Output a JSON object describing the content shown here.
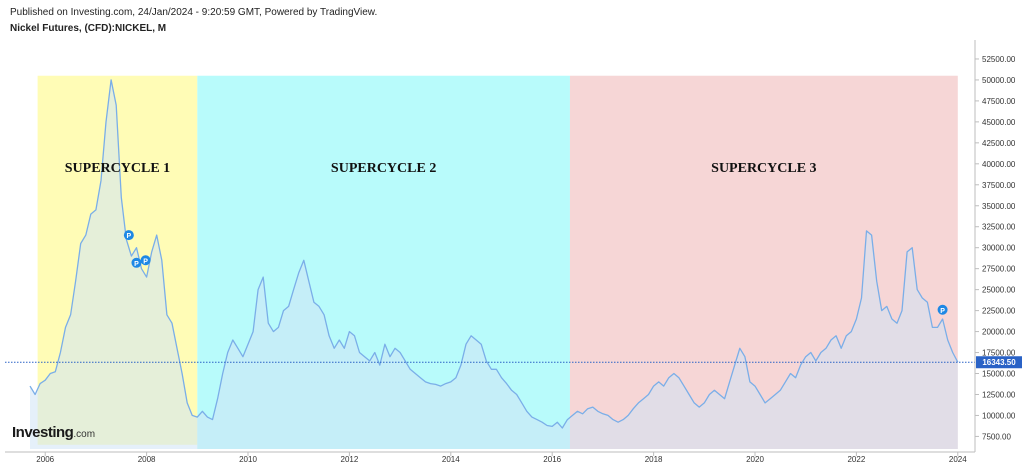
{
  "header": {
    "published": "Published on Investing.com, 24/Jan/2024 - 9:20:59 GMT, Powered by TradingView.",
    "symbol": "Nickel Futures, (CFD):NICKEL, M"
  },
  "logo": {
    "name": "Investing",
    "domain": ".com"
  },
  "colors": {
    "line": "#7aaee8",
    "last_price": "#2a62c6",
    "marker": "#1e88e5",
    "zone1": "#fffcb6",
    "zone2": "#b8fbfb",
    "zone3": "#f6d6d6",
    "fill": "#cfe3f6"
  },
  "chart_data": {
    "type": "area",
    "title": "Nickel Futures, (CFD):NICKEL, M",
    "xlim": [
      2005.7,
      2024.3
    ],
    "ylim": [
      6000,
      55000
    ],
    "x_ticks": [
      "2006",
      "2008",
      "2010",
      "2012",
      "2014",
      "2016",
      "2018",
      "2020",
      "2022",
      "2024"
    ],
    "y_ticks": [
      "7500.00",
      "10000.00",
      "12500.00",
      "15000.00",
      "17500.00",
      "20000.00",
      "22500.00",
      "25000.00",
      "27500.00",
      "30000.00",
      "32500.00",
      "35000.00",
      "37500.00",
      "40000.00",
      "42500.00",
      "45000.00",
      "47500.00",
      "50000.00",
      "52500.00"
    ],
    "last_price": {
      "value": 16343.5,
      "label": "16343.50"
    },
    "zones": [
      {
        "label": "SUPERCYCLE 1",
        "x_start": 2005.85,
        "x_end": 2009.0
      },
      {
        "label": "SUPERCYCLE 2",
        "x_start": 2009.0,
        "x_end": 2016.35
      },
      {
        "label": "SUPERCYCLE 3",
        "x_start": 2016.35,
        "x_end": 2024.0
      }
    ],
    "markers": [
      {
        "x": 2007.65,
        "y": 31500,
        "label": "P"
      },
      {
        "x": 2007.8,
        "y": 28200,
        "label": "P"
      },
      {
        "x": 2007.98,
        "y": 28500,
        "label": "P"
      },
      {
        "x": 2023.7,
        "y": 22600,
        "label": "P"
      }
    ],
    "series": [
      {
        "values": [
          [
            2005.7,
            13500
          ],
          [
            2005.8,
            12500
          ],
          [
            2005.9,
            13800
          ],
          [
            2006.0,
            14200
          ],
          [
            2006.1,
            15000
          ],
          [
            2006.2,
            15200
          ],
          [
            2006.3,
            17500
          ],
          [
            2006.4,
            20500
          ],
          [
            2006.5,
            22000
          ],
          [
            2006.6,
            26000
          ],
          [
            2006.7,
            30500
          ],
          [
            2006.8,
            31500
          ],
          [
            2006.9,
            34000
          ],
          [
            2007.0,
            34500
          ],
          [
            2007.1,
            38000
          ],
          [
            2007.2,
            45000
          ],
          [
            2007.3,
            50000
          ],
          [
            2007.4,
            47000
          ],
          [
            2007.5,
            36000
          ],
          [
            2007.6,
            31000
          ],
          [
            2007.7,
            29000
          ],
          [
            2007.8,
            30000
          ],
          [
            2007.9,
            27500
          ],
          [
            2008.0,
            26500
          ],
          [
            2008.1,
            29500
          ],
          [
            2008.2,
            31500
          ],
          [
            2008.3,
            28500
          ],
          [
            2008.4,
            22000
          ],
          [
            2008.5,
            21000
          ],
          [
            2008.6,
            18000
          ],
          [
            2008.7,
            15000
          ],
          [
            2008.8,
            11500
          ],
          [
            2008.9,
            10000
          ],
          [
            2009.0,
            9800
          ],
          [
            2009.1,
            10500
          ],
          [
            2009.2,
            9800
          ],
          [
            2009.3,
            9500
          ],
          [
            2009.4,
            12000
          ],
          [
            2009.5,
            15000
          ],
          [
            2009.6,
            17500
          ],
          [
            2009.7,
            19000
          ],
          [
            2009.8,
            18000
          ],
          [
            2009.9,
            17000
          ],
          [
            2010.0,
            18500
          ],
          [
            2010.1,
            20000
          ],
          [
            2010.2,
            25000
          ],
          [
            2010.3,
            26500
          ],
          [
            2010.4,
            21000
          ],
          [
            2010.5,
            20000
          ],
          [
            2010.6,
            20500
          ],
          [
            2010.7,
            22500
          ],
          [
            2010.8,
            23000
          ],
          [
            2010.9,
            25000
          ],
          [
            2011.0,
            27000
          ],
          [
            2011.1,
            28500
          ],
          [
            2011.2,
            26000
          ],
          [
            2011.3,
            23500
          ],
          [
            2011.4,
            23000
          ],
          [
            2011.5,
            22000
          ],
          [
            2011.6,
            19500
          ],
          [
            2011.7,
            18000
          ],
          [
            2011.8,
            19000
          ],
          [
            2011.9,
            18000
          ],
          [
            2012.0,
            20000
          ],
          [
            2012.1,
            19500
          ],
          [
            2012.2,
            17500
          ],
          [
            2012.3,
            17000
          ],
          [
            2012.4,
            16500
          ],
          [
            2012.5,
            17500
          ],
          [
            2012.6,
            16000
          ],
          [
            2012.7,
            18500
          ],
          [
            2012.8,
            17000
          ],
          [
            2012.9,
            18000
          ],
          [
            2013.0,
            17500
          ],
          [
            2013.1,
            16500
          ],
          [
            2013.2,
            15500
          ],
          [
            2013.3,
            15000
          ],
          [
            2013.4,
            14500
          ],
          [
            2013.5,
            14000
          ],
          [
            2013.6,
            13800
          ],
          [
            2013.7,
            13700
          ],
          [
            2013.8,
            13500
          ],
          [
            2013.9,
            13800
          ],
          [
            2014.0,
            14000
          ],
          [
            2014.1,
            14500
          ],
          [
            2014.2,
            16000
          ],
          [
            2014.3,
            18500
          ],
          [
            2014.4,
            19500
          ],
          [
            2014.5,
            19000
          ],
          [
            2014.6,
            18500
          ],
          [
            2014.7,
            16500
          ],
          [
            2014.8,
            15500
          ],
          [
            2014.9,
            15500
          ],
          [
            2015.0,
            14500
          ],
          [
            2015.1,
            13800
          ],
          [
            2015.2,
            13000
          ],
          [
            2015.3,
            12500
          ],
          [
            2015.4,
            11500
          ],
          [
            2015.5,
            10500
          ],
          [
            2015.6,
            9800
          ],
          [
            2015.7,
            9500
          ],
          [
            2015.8,
            9200
          ],
          [
            2015.9,
            8800
          ],
          [
            2016.0,
            8700
          ],
          [
            2016.1,
            9200
          ],
          [
            2016.2,
            8500
          ],
          [
            2016.3,
            9500
          ],
          [
            2016.4,
            10000
          ],
          [
            2016.5,
            10500
          ],
          [
            2016.6,
            10200
          ],
          [
            2016.7,
            10800
          ],
          [
            2016.8,
            11000
          ],
          [
            2016.9,
            10500
          ],
          [
            2017.0,
            10200
          ],
          [
            2017.1,
            10000
          ],
          [
            2017.2,
            9500
          ],
          [
            2017.3,
            9200
          ],
          [
            2017.4,
            9500
          ],
          [
            2017.5,
            10000
          ],
          [
            2017.6,
            10800
          ],
          [
            2017.7,
            11500
          ],
          [
            2017.8,
            12000
          ],
          [
            2017.9,
            12500
          ],
          [
            2018.0,
            13500
          ],
          [
            2018.1,
            14000
          ],
          [
            2018.2,
            13500
          ],
          [
            2018.3,
            14500
          ],
          [
            2018.4,
            15000
          ],
          [
            2018.5,
            14500
          ],
          [
            2018.6,
            13500
          ],
          [
            2018.7,
            12500
          ],
          [
            2018.8,
            11500
          ],
          [
            2018.9,
            11000
          ],
          [
            2019.0,
            11500
          ],
          [
            2019.1,
            12500
          ],
          [
            2019.2,
            13000
          ],
          [
            2019.3,
            12500
          ],
          [
            2019.4,
            12000
          ],
          [
            2019.5,
            14000
          ],
          [
            2019.6,
            16000
          ],
          [
            2019.7,
            18000
          ],
          [
            2019.8,
            17000
          ],
          [
            2019.9,
            14000
          ],
          [
            2020.0,
            13500
          ],
          [
            2020.1,
            12500
          ],
          [
            2020.2,
            11500
          ],
          [
            2020.3,
            12000
          ],
          [
            2020.4,
            12500
          ],
          [
            2020.5,
            13000
          ],
          [
            2020.6,
            14000
          ],
          [
            2020.7,
            15000
          ],
          [
            2020.8,
            14500
          ],
          [
            2020.9,
            16000
          ],
          [
            2021.0,
            17000
          ],
          [
            2021.1,
            17500
          ],
          [
            2021.2,
            16500
          ],
          [
            2021.3,
            17500
          ],
          [
            2021.4,
            18000
          ],
          [
            2021.5,
            19000
          ],
          [
            2021.6,
            19500
          ],
          [
            2021.7,
            18000
          ],
          [
            2021.8,
            19500
          ],
          [
            2021.9,
            20000
          ],
          [
            2022.0,
            21500
          ],
          [
            2022.1,
            24000
          ],
          [
            2022.2,
            32000
          ],
          [
            2022.3,
            31500
          ],
          [
            2022.4,
            26000
          ],
          [
            2022.5,
            22500
          ],
          [
            2022.6,
            23000
          ],
          [
            2022.7,
            21500
          ],
          [
            2022.8,
            21000
          ],
          [
            2022.9,
            22500
          ],
          [
            2023.0,
            29500
          ],
          [
            2023.1,
            30000
          ],
          [
            2023.2,
            25000
          ],
          [
            2023.3,
            24000
          ],
          [
            2023.4,
            23500
          ],
          [
            2023.5,
            20500
          ],
          [
            2023.6,
            20500
          ],
          [
            2023.7,
            21500
          ],
          [
            2023.8,
            19000
          ],
          [
            2023.9,
            17500
          ],
          [
            2024.0,
            16343.5
          ]
        ]
      }
    ]
  }
}
